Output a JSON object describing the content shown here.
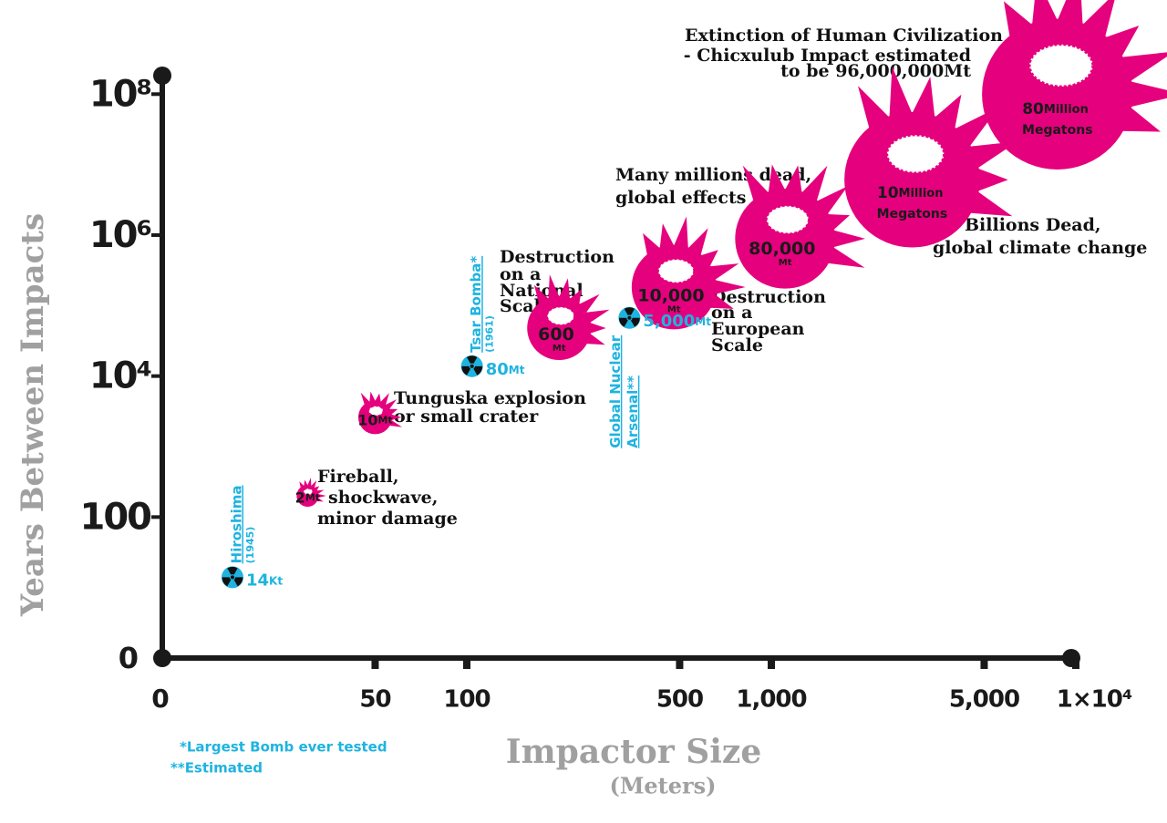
{
  "chart_data": {
    "type": "scatter",
    "x_label": "Impactor Size",
    "x_label_unit": "(Meters)",
    "y_label": "Years Between Impacts",
    "xscale": "log",
    "yscale": "log",
    "xlim": [
      10,
      10000
    ],
    "ylim": [
      1,
      200000000
    ],
    "x_origin_label": "0",
    "y_origin_label": "0",
    "xticks": [
      50,
      100,
      500,
      {
        "value": 1000,
        "label": "1,000"
      },
      {
        "value": 5000,
        "label": "5,000"
      },
      {
        "value": 10000,
        "label": "1×10⁴"
      }
    ],
    "yticks": [
      100,
      {
        "value": 10000,
        "label": "10⁴"
      },
      {
        "value": 1000000,
        "label": "10⁶"
      },
      {
        "value": 100000000,
        "label": "10⁸"
      }
    ],
    "axis_color": "#1a1a1a",
    "series": [
      {
        "marker": "burst",
        "color": "#e5007d",
        "x": [
          30,
          50,
          201,
          479,
          1110,
          2900,
          8700
        ],
        "values": [
          200,
          2600,
          48000,
          183000,
          890000,
          6100000,
          100000000
        ],
        "sizes": [
          2,
          10,
          600,
          10000,
          80000,
          10000000,
          80000000
        ],
        "size_labels": [
          "2Mt",
          "10Mt",
          "600 Mt",
          "10,000 Mt",
          "80,000 Mt",
          "10Million Megatons",
          "80Million Megatons"
        ]
      },
      {
        "marker": "nuclear",
        "color": "#1fb3e0",
        "x": [
          17,
          104,
          342
        ],
        "values": [
          14,
          13800,
          67000
        ],
        "sizes": [
          0.014,
          80,
          5000
        ],
        "size_labels": [
          "14Kt",
          "80Mt",
          "5,000Mt"
        ],
        "labels": [
          [
            "Hiroshima"
          ],
          [
            "Tsar Bomba*"
          ],
          [
            "Global Nuclear",
            "Arsenal**"
          ]
        ],
        "dates": [
          "(1945)",
          "(1961)",
          null
        ]
      }
    ],
    "annotations": [
      [
        "Fireball,",
        "shockwave,",
        "minor damage"
      ],
      [
        "Tunguska explosion",
        "or small crater"
      ],
      [
        "Destruction",
        "on a",
        "National",
        "Scale"
      ],
      [
        "Destruction",
        "on a",
        "European",
        "Scale"
      ],
      [
        "Many millions dead,",
        "global effects"
      ],
      [
        "Billions Dead,",
        "global climate change"
      ],
      [
        "Extinction of Human Civilization",
        "- Chicxulub Impact estimated",
        "to be 96,000,000Mt"
      ]
    ],
    "footnotes": [
      "*Largest Bomb ever tested",
      "**Estimated"
    ]
  }
}
